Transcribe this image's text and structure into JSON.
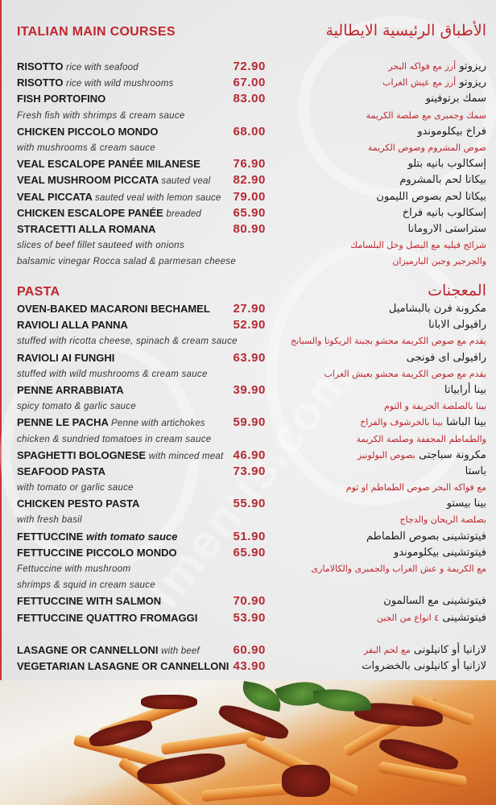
{
  "colors": {
    "accent": "#c0262d",
    "price": "#b52a33",
    "text": "#1a1a1a"
  },
  "watermark": "elmenus.com",
  "sections": [
    {
      "title_en": "ITALIAN MAIN COURSES",
      "title_ar": "الأطباق الرئيسية الايطالية",
      "rows": [
        {
          "en": "RISOTTO",
          "en_desc": "rice with seafood",
          "price": "72.90",
          "ar": "ريزوتو",
          "ar_desc": "أرز مع فواكه البحر"
        },
        {
          "en": "RISOTTO",
          "en_desc": "rice with wild mushrooms",
          "price": "67.00",
          "ar": "ريزوتو",
          "ar_desc": "أرز مع عيش الغراب"
        },
        {
          "en": "FISH PORTOFINO",
          "price": "83.00",
          "ar": "سمك برتوفينو"
        },
        {
          "en_note": "Fresh fish with shrimps & cream sauce",
          "ar_note": "سمك وجمبرى مع صلصة الكريمة"
        },
        {
          "en": "CHICKEN PICCOLO MONDO",
          "price": "68.00",
          "ar": "فراخ بيكلوموندو"
        },
        {
          "en_note": "with mushrooms & cream sauce",
          "ar_note": "صوص المشروم وصوص الكريمة"
        },
        {
          "en": "VEAL ESCALOPE PANÉE MILANESE",
          "price": "76.90",
          "ar": "إسكالوب بانيه بتلو"
        },
        {
          "en": "VEAL MUSHROOM PICCATA",
          "en_desc": "sauted veal",
          "price": "82.90",
          "ar": "بيكاتا لحم بالمشروم"
        },
        {
          "en": "VEAL PICCATA",
          "en_desc": "sauted veal with lemon sauce",
          "price": "79.00",
          "ar": "بيكاتا لحم بصوص الليمون"
        },
        {
          "en": "CHICKEN ESCALOPE PANÉE",
          "en_desc": "breaded",
          "price": "65.90",
          "ar": "إسكالوب بانيه فراخ"
        },
        {
          "en": "STRACETTI ALLA ROMANA",
          "price": "80.90",
          "ar": "ستراستى الارومانا"
        },
        {
          "en_note": "slices of beef fillet sauteed with onions",
          "ar_note": "شرائح فيليه مع البصل وخل البلسامك"
        },
        {
          "en_note": "balsamic vinegar Rocca salad & parmesan cheese",
          "ar_note": "والجرجير وجبن البارميزان"
        }
      ]
    },
    {
      "title_en": "PASTA",
      "title_ar": "المعجنات",
      "rows": [
        {
          "en": "OVEN-BAKED MACARONI BECHAMEL",
          "price": "27.90",
          "ar": "مكرونة فرن بالبشاميل"
        },
        {
          "en": "RAVIOLI ALLA PANNA",
          "price": "52.90",
          "ar": "رافيولى الابانا"
        },
        {
          "en_note": "stuffed with ricotta cheese, spinach & cream sauce",
          "ar_note": "يقدم مع صوص الكريمة محشو بجبنة الريكوتا والسبانخ"
        },
        {
          "en": "RAVIOLI AI FUNGHI",
          "price": "63.90",
          "ar": "رافيولى اى فونجى"
        },
        {
          "en_note": "stuffed with wild mushrooms & cream sauce",
          "ar_note": "يقدم مع صوص الكريمة محشو بعيش الغراب"
        },
        {
          "en": "PENNE ARRABBIATA",
          "price": "39.90",
          "ar": "بينا أرابياتا"
        },
        {
          "en_note": "spicy tomato & garlic sauce",
          "ar_note": "بينا بالصلصة الحريفة و الثوم"
        },
        {
          "en": "PENNE LE PACHA",
          "en_desc": "Penne with artichokes",
          "price": "59.90",
          "ar": "بينا الباشا",
          "ar_desc": "بينا بالخرشوف والفراخ"
        },
        {
          "en_note": "chicken & sundried tomatoes in cream sauce",
          "ar_note": "والطماطم المجففة وصلصة الكريمة"
        },
        {
          "en": "SPAGHETTI BOLOGNESE",
          "en_desc": "with minced meat",
          "price": "46.90",
          "ar": "مكرونة سباجتى",
          "ar_desc": "بصوص البولونيز"
        },
        {
          "en": "SEAFOOD PASTA",
          "price": "73.90",
          "ar": "باستا"
        },
        {
          "en_note": "with tomato or garlic sauce",
          "ar_note": "مع فواكه البحر  صوص الطماطم او ثوم"
        },
        {
          "en": "CHICKEN PESTO PASTA",
          "price": "55.90",
          "ar": "بينا بيستو"
        },
        {
          "en_note": "with fresh basil",
          "ar_note": "بصلصة الريحان والدجاج"
        },
        {
          "en": "FETTUCCINE",
          "en_bold_italic": "with tomato sauce",
          "price": "51.90",
          "ar": "فيتوتشينى بصوص الطماطم"
        },
        {
          "en": "FETTUCCINE PICCOLO MONDO",
          "price": "65.90",
          "ar": "فيتوتشينى بيكلوموندو"
        },
        {
          "en_note": "Fettuccine with mushroom",
          "ar_note": "مع الكريمة و عش الغراب والجمبرى والكالامارى"
        },
        {
          "en_note": " shrimps & squid in cream sauce"
        },
        {
          "en": "FETTUCCINE WITH SALMON",
          "price": "70.90",
          "ar": "فيتوتشينى مع السالمون"
        },
        {
          "en": "FETTUCCINE QUATTRO FROMAGGI",
          "price": "53.90",
          "ar": "فيتوتشينى",
          "ar_desc": "٤ انواع من الجبن"
        },
        {},
        {
          "en": "LASAGNE OR CANNELLONI",
          "en_desc": "with beef",
          "price": "60.90",
          "ar": "لازانيا  أو كانيلونى",
          "ar_desc": "مع لحم البقر"
        },
        {
          "en": "VEGETARIAN LASAGNE OR CANNELLONI",
          "price": "43.90",
          "ar": "لازانيا أو كانيلونى بالخضروات"
        }
      ]
    }
  ]
}
